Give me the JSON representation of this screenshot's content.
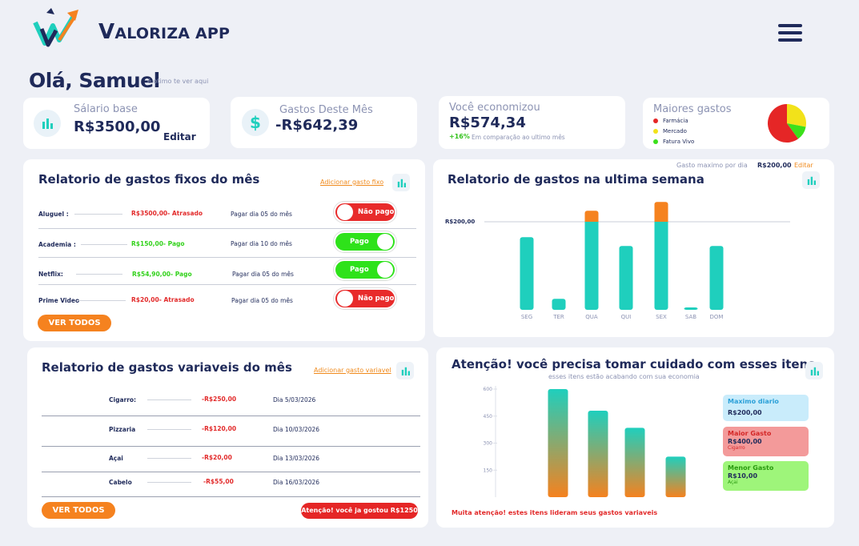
{
  "header": {
    "app_name": "Valoriza APP",
    "app_name_first": "V",
    "app_name_rest": "ALORIZA APP",
    "greeting": "Olá, Samuel",
    "greeting_sub": "é otimo te ver aqui"
  },
  "stats": {
    "salary": {
      "label": "Sálario base",
      "value": "R$3500,00",
      "edit": "Editar"
    },
    "spent": {
      "label": "Gastos Deste Mês",
      "value": "-R$642,39"
    },
    "saved": {
      "label": "Você economizou",
      "value": "R$574,34",
      "change": "+16%",
      "change_note": "Em comparação ao ultimo mês"
    },
    "top": {
      "label": "Maiores gastos",
      "legend": [
        {
          "name": "Farmácia",
          "color": "#e52626",
          "value": 60
        },
        {
          "name": "Mercado",
          "color": "#f2e21a",
          "value": 28
        },
        {
          "name": "Fatura Vivo",
          "color": "#3be01b",
          "value": 12
        }
      ]
    }
  },
  "fixed": {
    "title": "Relatorio de gastos fixos do mês",
    "add_link": "Adicionar gasto fixo",
    "view_all": "VER TODOS",
    "rows": [
      {
        "name": "Aluguel :",
        "amount": "R$3500,00- Atrasado",
        "due": "Pagar dia 05 do mês",
        "status": "Não pago"
      },
      {
        "name": "Academia :",
        "amount": "R$150,00- Pago",
        "due": "Pagar dia 10 do mês",
        "status": "Pago"
      },
      {
        "name": "Netflix:",
        "amount": "R$54,90,00- Pago",
        "due": "Pagar dia 05 do mês",
        "status": "Pago"
      },
      {
        "name": "Prime Video",
        "amount": "R$20,00- Atrasado",
        "due": "Pagar dia 05 do mês",
        "status": "Não pago"
      }
    ]
  },
  "weekly": {
    "title": "Relatorio de gastos na ultima semana",
    "max_label": "Gasto maximo por dia",
    "max_value": "R$200,00",
    "max_edit": "Editar",
    "ref_label": "R$200,00"
  },
  "variable": {
    "title": "Relatorio de gastos variaveis do mês",
    "add_link": "Adicionar gasto variavel",
    "view_all": "VER TODOS",
    "alert": "Atenção! você ja gostou R$1250",
    "rows": [
      {
        "name": "Cigarro:",
        "amount": "-R$250,00",
        "date": "Dia 5/03/2026"
      },
      {
        "name": "Pizzaria",
        "amount": "-R$120,00",
        "date": "Dia 10/03/2026"
      },
      {
        "name": "Açai",
        "amount": "-R$20,00",
        "date": "Dia 13/03/2026"
      },
      {
        "name": "Cabelo",
        "amount": "-R$55,00",
        "date": "Dia 16/03/2026"
      }
    ]
  },
  "attention": {
    "title": "Atenção! você precisa tomar cuidado com esses itens",
    "subtitle": "esses itens estão acabando com sua economia",
    "footer": "Muita atenção! estes itens lideram seus gastos variaveis",
    "cards": [
      {
        "title": "Maximo diario",
        "value": "R$200,00",
        "note": "",
        "bg": "#c9ecfb",
        "fg": "#2ba0d8"
      },
      {
        "title": "Maior Gasto",
        "value": "R$400,00",
        "note": "Cigarro",
        "bg": "#f39a9a",
        "fg": "#d42727"
      },
      {
        "title": "Menor Gasto",
        "value": "R$10,00",
        "note": "Açai",
        "bg": "#9ef57a",
        "fg": "#2a9a10"
      }
    ]
  },
  "chart_data": [
    {
      "type": "bar",
      "categories": [
        "SEG",
        "TER",
        "QUA",
        "QUI",
        "SEX",
        "SAB",
        "DOM"
      ],
      "series": [
        {
          "values": [
            165,
            25,
            200,
            145,
            200,
            5,
            145
          ],
          "color": "#1fcfbd"
        },
        {
          "values": [
            0,
            0,
            25,
            0,
            45,
            0,
            0
          ],
          "color": "#f5821f"
        }
      ],
      "reference_line": 200,
      "ylim": [
        0,
        260
      ]
    },
    {
      "type": "bar",
      "categories": [
        "",
        "",
        "",
        ""
      ],
      "values": [
        600,
        480,
        385,
        225
      ],
      "yticks": [
        150,
        300,
        450,
        600
      ],
      "ylim": [
        0,
        620
      ],
      "gradient": [
        "#1fcfbd",
        "#f5821f"
      ]
    }
  ]
}
